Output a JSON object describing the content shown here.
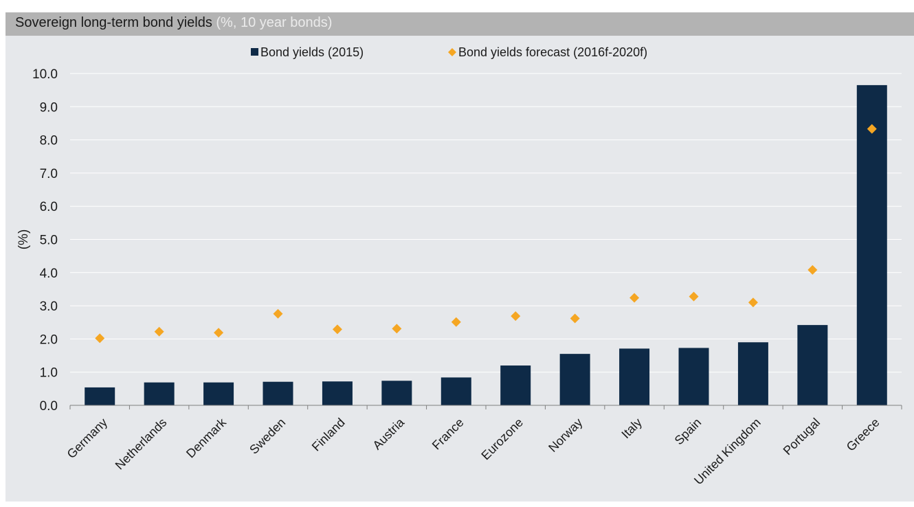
{
  "header": {
    "title": "Sovereign long-term bond yields",
    "subtitle": "(%, 10 year bonds)"
  },
  "chart_data": {
    "type": "bar",
    "title": "Sovereign long-term bond yields",
    "subtitle": "(%, 10 year bonds)",
    "xlabel": "",
    "ylabel": "(%)",
    "ylim": [
      0,
      10
    ],
    "yticks": [
      "0.0",
      "1.0",
      "2.0",
      "3.0",
      "4.0",
      "5.0",
      "6.0",
      "7.0",
      "8.0",
      "9.0",
      "10.0"
    ],
    "grid": true,
    "legend_position": "top-center",
    "categories": [
      "Germany",
      "Netherlands",
      "Denmark",
      "Sweden",
      "Finland",
      "Austria",
      "France",
      "Eurozone",
      "Norway",
      "Italy",
      "Spain",
      "United Kingdom",
      "Portugal",
      "Greece"
    ],
    "series": [
      {
        "name": "Bond yields (2015)",
        "type": "bar",
        "color": "#0e2a47",
        "values": [
          0.54,
          0.69,
          0.69,
          0.71,
          0.72,
          0.74,
          0.84,
          1.2,
          1.55,
          1.71,
          1.73,
          1.9,
          2.42,
          9.65
        ]
      },
      {
        "name": "Bond yields forecast (2016f-2020f)",
        "type": "scatter",
        "marker": "diamond",
        "color": "#f5a623",
        "values": [
          2.02,
          2.22,
          2.19,
          2.76,
          2.29,
          2.31,
          2.51,
          2.69,
          2.62,
          3.24,
          3.28,
          3.1,
          4.08,
          8.33
        ]
      }
    ]
  }
}
